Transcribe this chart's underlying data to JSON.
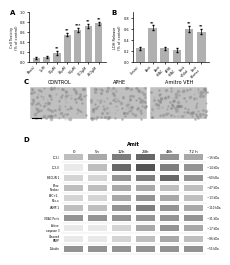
{
  "panel_A": {
    "label": "A",
    "categories": [
      "Basal",
      "1μM",
      "10μM",
      "25μM",
      "50μM",
      "100μM",
      "250μM"
    ],
    "values": [
      0.08,
      0.1,
      0.18,
      0.55,
      0.65,
      0.72,
      0.78
    ],
    "errors": [
      0.02,
      0.02,
      0.04,
      0.03,
      0.04,
      0.04,
      0.03
    ],
    "sig": [
      "",
      "",
      "**",
      "**",
      "***",
      "**",
      "**"
    ],
    "ylabel": "Cell Toxicity\n(% of control)",
    "bar_color": "#b0b0b0",
    "ylim": [
      0,
      1.0
    ]
  },
  "panel_B": {
    "label": "B",
    "categories": [
      "Control",
      "Amit",
      "Amit\n+NAC",
      "APHE\n+NAC",
      "Emit\n+ZVad",
      "Emit\n+Bortez"
    ],
    "values": [
      0.25,
      0.62,
      0.25,
      0.22,
      0.6,
      0.55
    ],
    "errors": [
      0.03,
      0.04,
      0.03,
      0.03,
      0.05,
      0.05
    ],
    "sig": [
      "",
      "**",
      "",
      "",
      "**",
      "**"
    ],
    "ylabel": "LDH Release\n(% of control)",
    "bar_color": "#b0b0b0",
    "ylim": [
      0,
      0.9
    ]
  },
  "panel_C": {
    "label": "C",
    "images": [
      "CONTROL",
      "APHE",
      "Amitro VEH"
    ],
    "bg_color": "#d0d0d0"
  },
  "panel_D": {
    "label": "D",
    "title": "Amit",
    "lanes": [
      "0",
      "5h",
      "12h",
      "24h",
      "48h",
      "72 h"
    ],
    "proteins": [
      "LC3-I",
      "LC3-II",
      "BECLIN 1",
      "Phox\nNoxber",
      "APC+2-\nP2x-x",
      "LAMP-1",
      "VDAC Porin",
      "Active\ncaspase 3",
      "Cleaved\nPARP",
      "Tubulin"
    ],
    "sizes": [
      "~16 kDa",
      "~14 kDa",
      "~60 kDa",
      "~47 kDa",
      "~13 kDa",
      "~110 kDa",
      "~31 kDa",
      "~17 kDa",
      "~86 kDa",
      "~55 kDa"
    ],
    "bg_color": "#f0f0f0"
  },
  "figure_bg": "#ffffff",
  "text_color": "#000000"
}
